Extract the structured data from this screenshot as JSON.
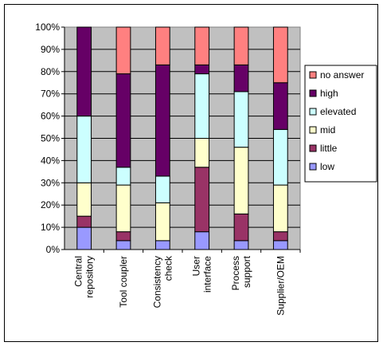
{
  "chart_data": {
    "type": "bar",
    "stacked": true,
    "normalized": true,
    "title": "",
    "xlabel": "",
    "ylabel": "",
    "ylim": [
      0,
      100
    ],
    "y_ticks": [
      "0%",
      "10%",
      "20%",
      "30%",
      "40%",
      "50%",
      "60%",
      "70%",
      "80%",
      "90%",
      "100%"
    ],
    "grid": true,
    "legend_position": "right",
    "categories": [
      [
        "Central",
        "repository"
      ],
      [
        "Tool coupler"
      ],
      [
        "Consistency",
        "check"
      ],
      [
        "User",
        "interface"
      ],
      [
        "Process",
        "support"
      ],
      [
        "Supplier/OEM"
      ]
    ],
    "series": [
      {
        "name": "low",
        "color": "#9999ff",
        "values": [
          10,
          4,
          4,
          8,
          4,
          4
        ]
      },
      {
        "name": "little",
        "color": "#993366",
        "values": [
          5,
          4,
          0,
          29,
          12,
          4
        ]
      },
      {
        "name": "mid",
        "color": "#ffffcc",
        "values": [
          15,
          21,
          17,
          13,
          30,
          21
        ]
      },
      {
        "name": "elevated",
        "color": "#ccffff",
        "values": [
          30,
          8,
          12,
          29,
          25,
          25
        ]
      },
      {
        "name": "high",
        "color": "#660066",
        "values": [
          40,
          42,
          50,
          4,
          12,
          21
        ]
      },
      {
        "name": "no answer",
        "color": "#ff8080",
        "values": [
          0,
          21,
          17,
          17,
          17,
          25
        ]
      }
    ]
  }
}
